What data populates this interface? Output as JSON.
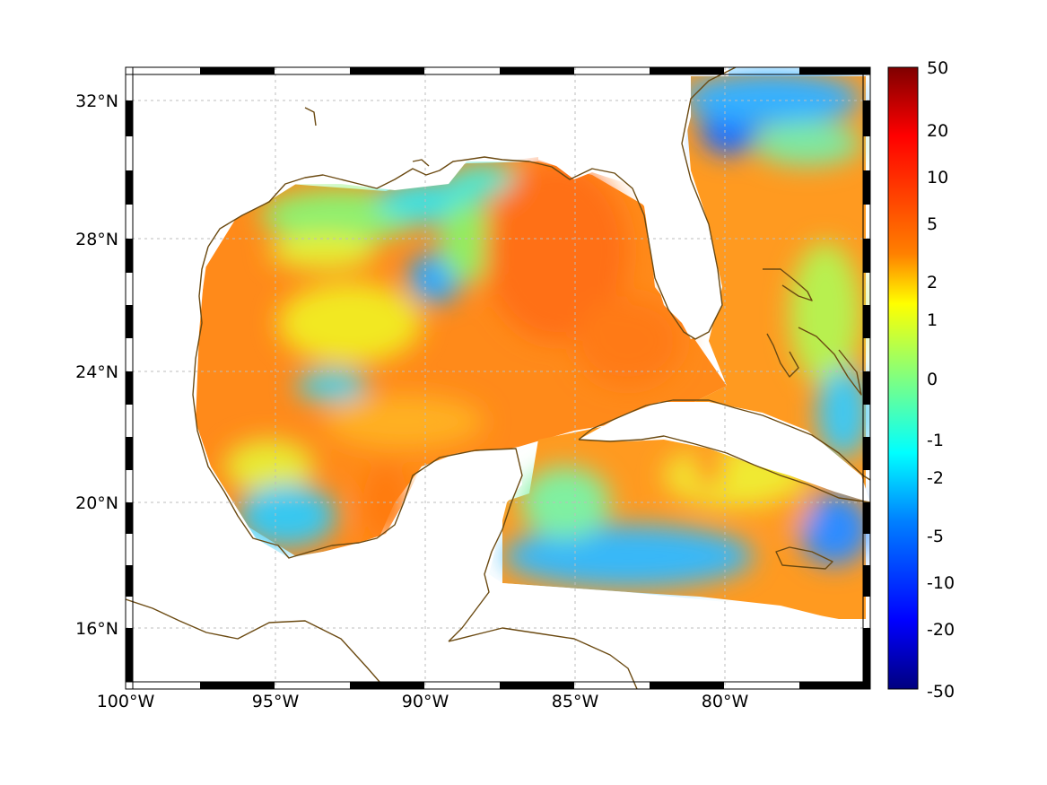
{
  "map": {
    "lon_ticks": [
      "100°W",
      "95°W",
      "90°W",
      "85°W",
      "80°W"
    ],
    "lat_ticks": [
      "32°N",
      "28°N",
      "24°N",
      "20°N",
      "16°N"
    ],
    "grid": true,
    "colors": {
      "coastline": "#6b4a12",
      "grid": "#bdbdbd",
      "land_mask": "#ffffff"
    }
  },
  "colorbar": {
    "ticks": [
      "50",
      "20",
      "10",
      "5",
      "2",
      "1",
      "0",
      "-1",
      "-2",
      "-5",
      "-10",
      "-20",
      "-50"
    ],
    "top_color": "#7f0000",
    "bottom_color": "#00007f",
    "colormap": "jet",
    "scale": "symmetric-log"
  }
}
